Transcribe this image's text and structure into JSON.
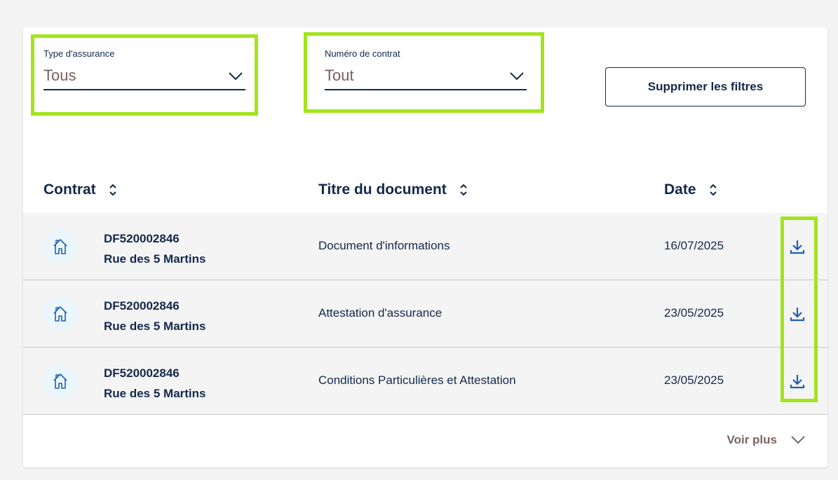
{
  "filters": {
    "insurance_type": {
      "label": "Type d'assurance",
      "value": "Tous"
    },
    "contract_number": {
      "label": "Numéro de contrat",
      "value": "Tout"
    },
    "clear_button": "Supprimer les filtres"
  },
  "table": {
    "headers": [
      "Contrat",
      "Titre du document",
      "Date"
    ],
    "rows": [
      {
        "contract": "DF520002846",
        "address": "Rue des 5 Martins",
        "title": "Document d'informations",
        "date": "16/07/2025"
      },
      {
        "contract": "DF520002846",
        "address": "Rue des 5 Martins",
        "title": "Attestation d'assurance",
        "date": "23/05/2025"
      },
      {
        "contract": "DF520002846",
        "address": "Rue des 5 Martins",
        "title": "Conditions Particulières et Attestation",
        "date": "23/05/2025"
      }
    ]
  },
  "more_label": "Voir plus",
  "colors": {
    "primary": "#13294b",
    "download": "#1f5fb0",
    "highlight": "#a3e41b",
    "row_bg": "#f4f4f4"
  }
}
